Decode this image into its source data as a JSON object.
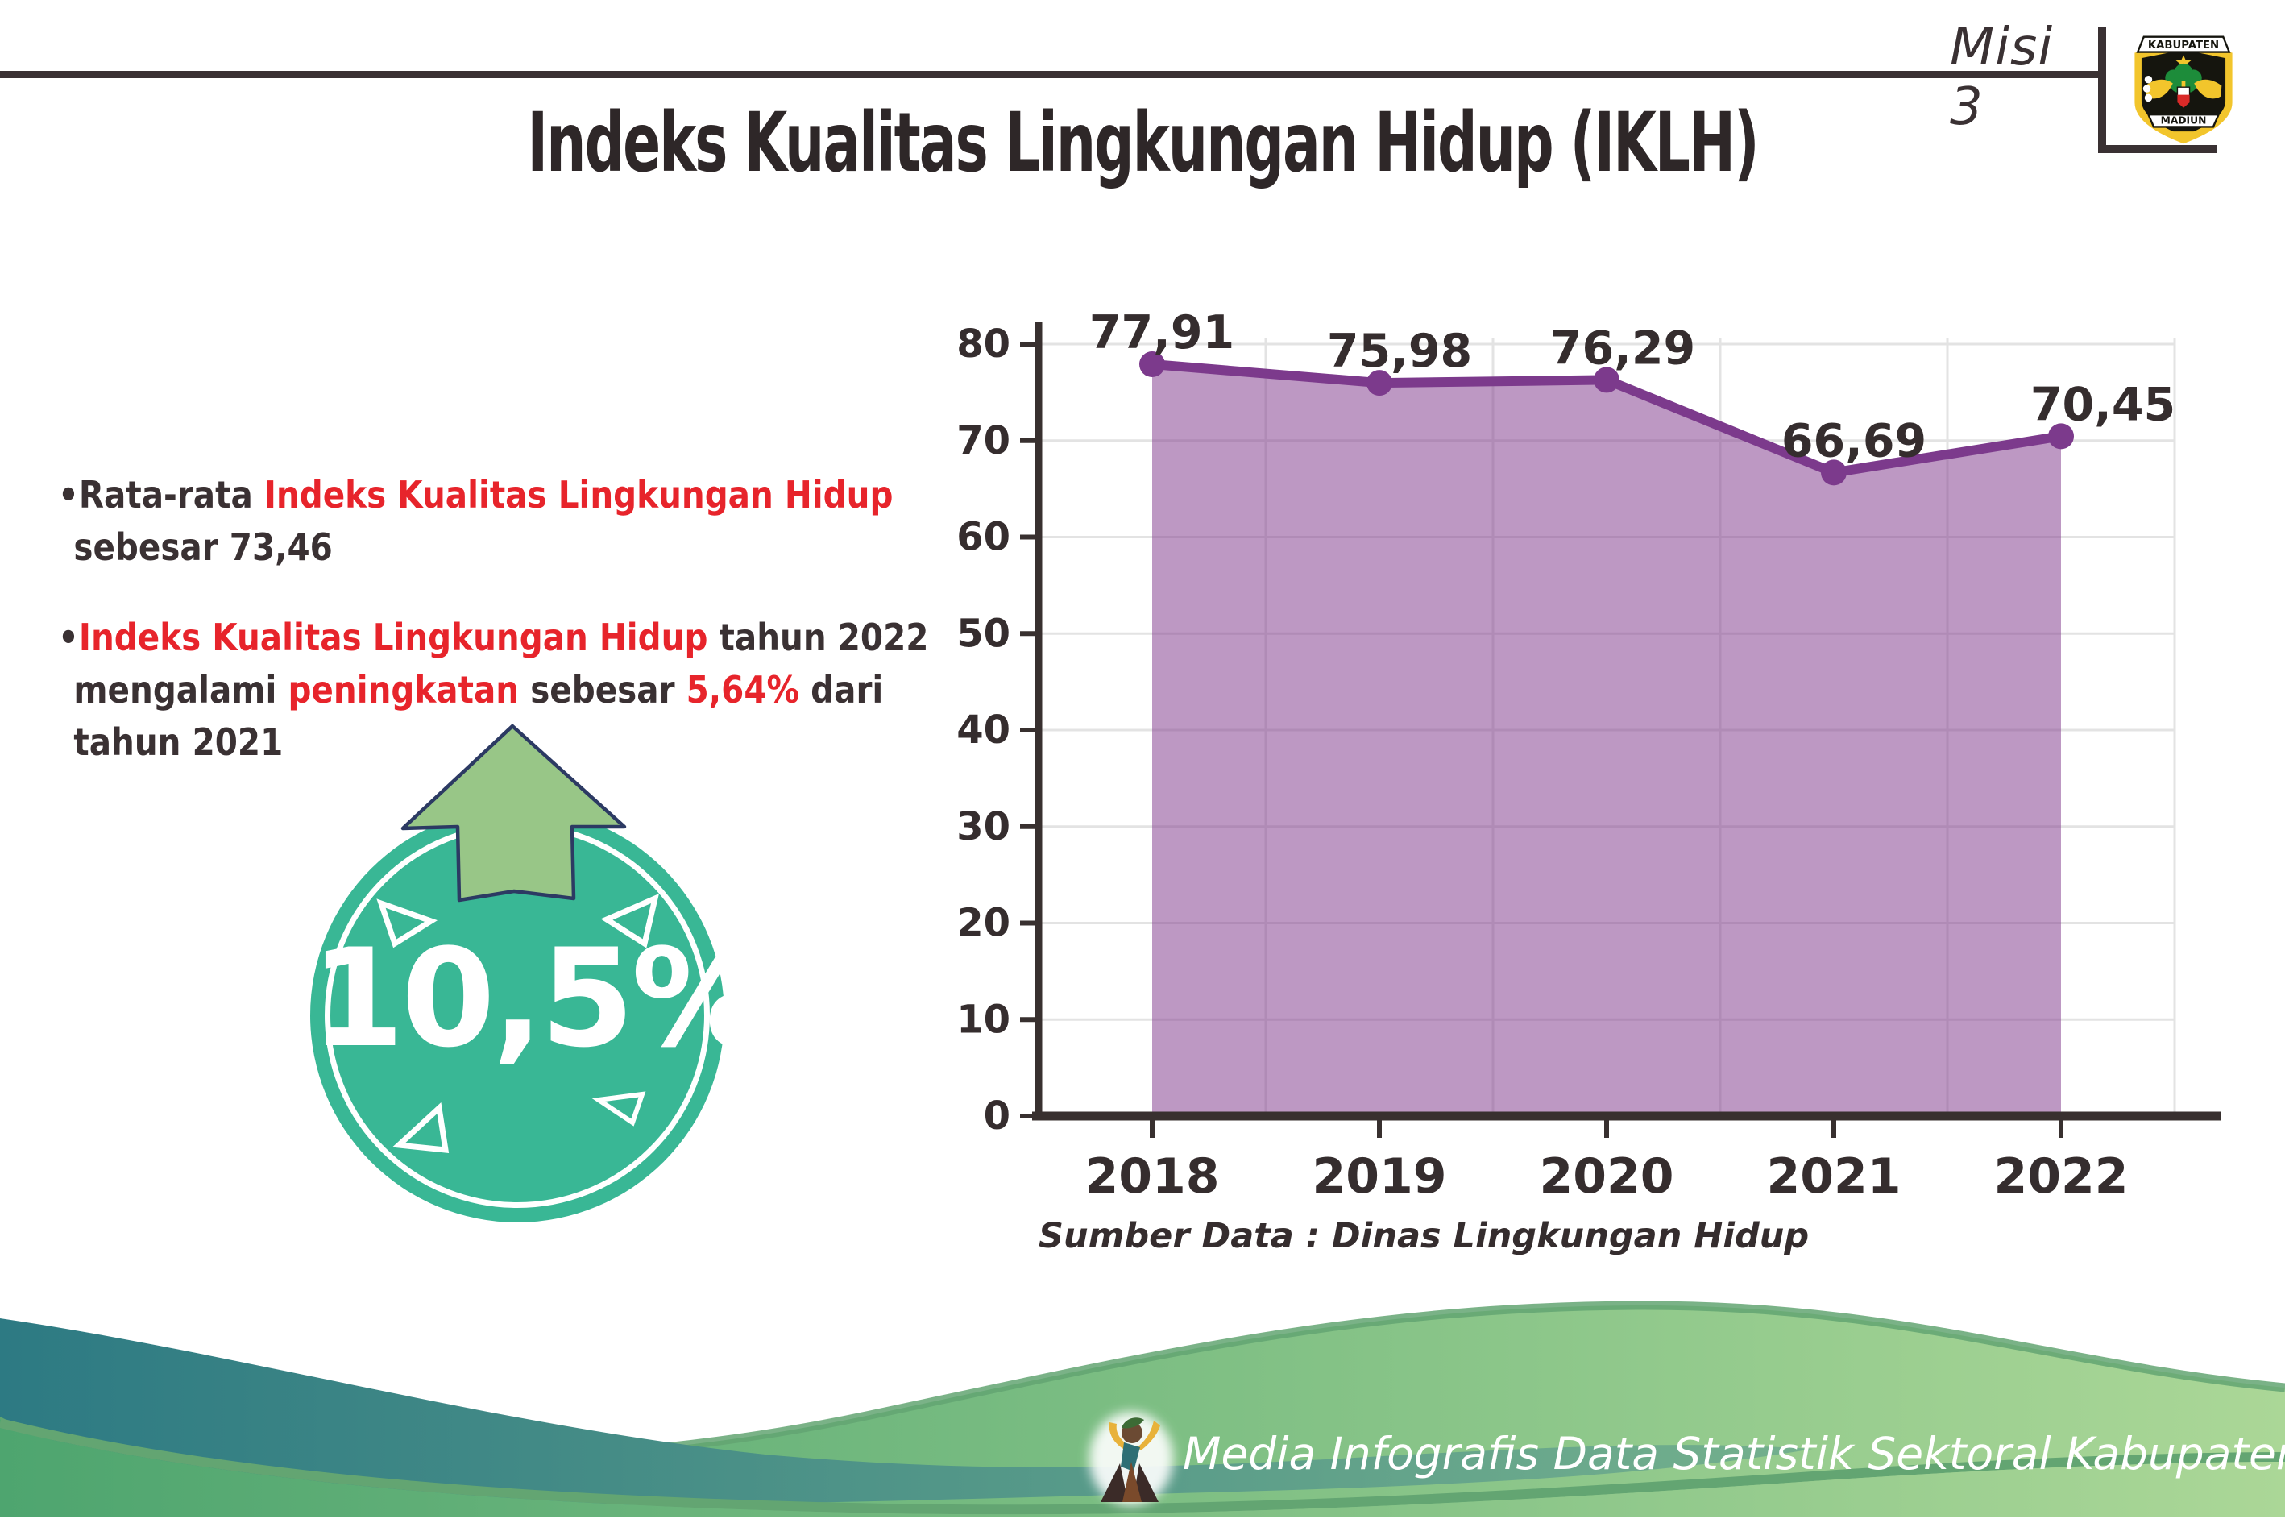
{
  "header": {
    "misi_label": "Misi 3",
    "title": "Indeks Kualitas Lingkungan Hidup (IKLH)",
    "emblem_top": "KABUPATEN",
    "emblem_bottom": "MADIUN"
  },
  "bullets": [
    {
      "lines": [
        [
          {
            "t": "•Rata-rata ",
            "c": "dark"
          },
          {
            "t": "Indeks Kualitas Lingkungan Hidup",
            "c": "red"
          }
        ],
        [
          {
            "t": "sebesar 73,46",
            "c": "dark"
          }
        ]
      ]
    },
    {
      "lines": [
        [
          {
            "t": "•",
            "c": "dark"
          },
          {
            "t": "Indeks Kualitas Lingkungan Hidup",
            "c": "red"
          },
          {
            "t": " tahun 2022",
            "c": "dark"
          }
        ],
        [
          {
            "t": "mengalami ",
            "c": "dark"
          },
          {
            "t": "peningkatan",
            "c": "red"
          },
          {
            "t": " sebesar ",
            "c": "dark"
          },
          {
            "t": "5,64%",
            "c": "red"
          },
          {
            "t": " dari",
            "c": "dark"
          }
        ],
        [
          {
            "t": "tahun 2021",
            "c": "dark"
          }
        ]
      ]
    }
  ],
  "badge": {
    "value": "10,5%"
  },
  "chart_data": {
    "type": "area",
    "title": "Indeks Kualitas Lingkungan Hidup (IKLH)",
    "categories": [
      "2018",
      "2019",
      "2020",
      "2021",
      "2022"
    ],
    "values": [
      77.91,
      75.98,
      76.29,
      66.69,
      70.45
    ],
    "value_labels": [
      "77,91",
      "75,98",
      "76,29",
      "66,69",
      "70,45"
    ],
    "ylim": [
      0,
      80
    ],
    "yticks": [
      0,
      10,
      20,
      30,
      40,
      50,
      60,
      70,
      80
    ],
    "grid": true,
    "legend": "none",
    "xlabel": "",
    "ylabel": "",
    "source_note": "Sumber Data : Dinas Lingkungan Hidup",
    "line_color": "#7c3a8c",
    "fill_color": "rgba(128,58,140,0.52)"
  },
  "footer": {
    "caption": "Media Infografis Data Statistik Sektoral Kabupaten Madiun |"
  },
  "colors": {
    "text_dark": "#3a3133",
    "accent_red": "#e7242b",
    "badge_teal": "#39b795",
    "arrow_green": "#98c687",
    "arrow_outline_navy": "#2c3a63",
    "axis_dark": "#38302f",
    "gridline_gray": "#e3e3e3",
    "footer_teal_start": "#2d7a83",
    "footer_teal_end": "#74b08d",
    "footer_green_start": "#4ea56f",
    "footer_green_end": "#abd797",
    "footer_edge_green": "#63a572",
    "emblem_yellow": "#f2c52c"
  }
}
